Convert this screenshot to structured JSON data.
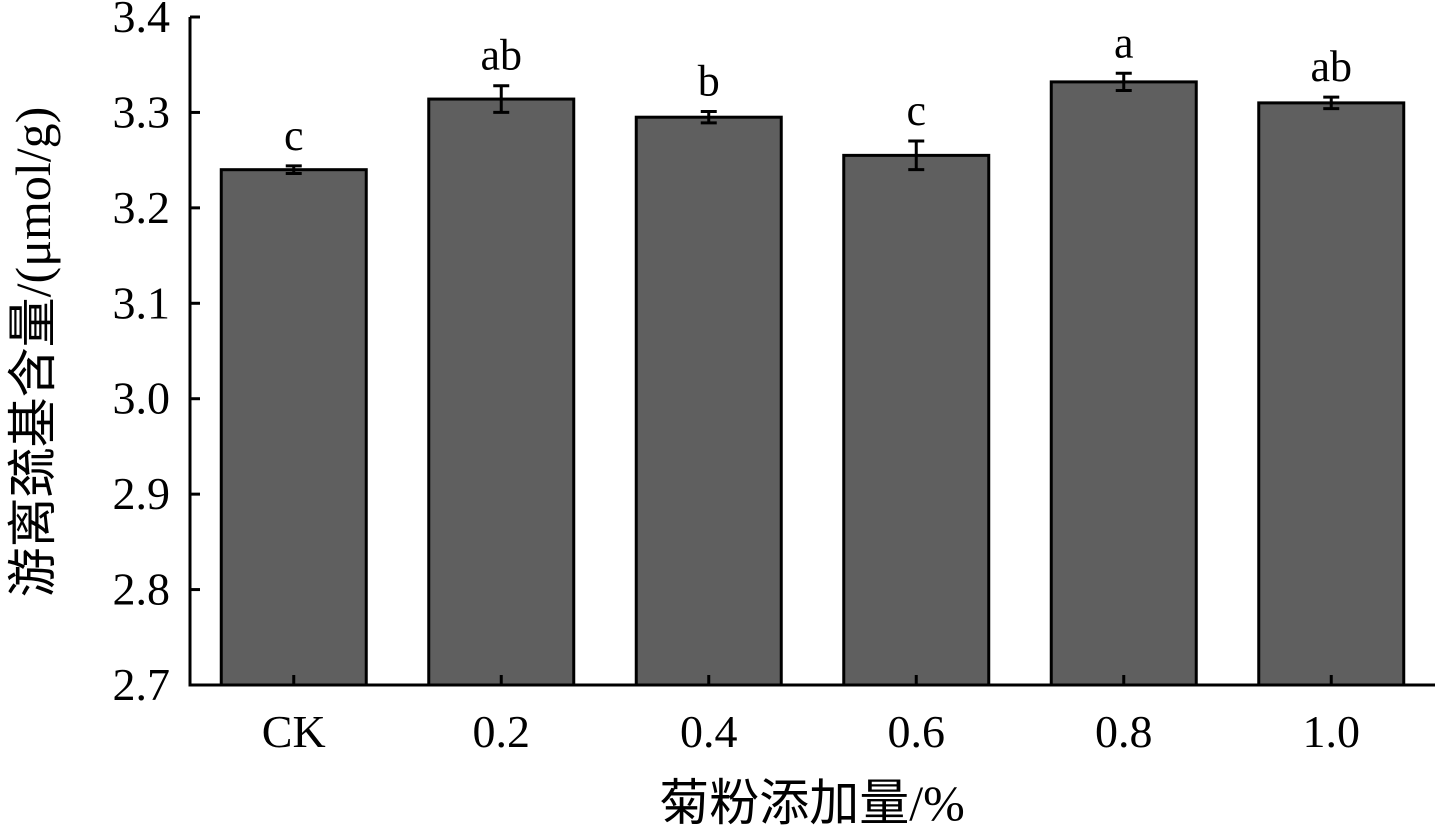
{
  "chart_data": {
    "type": "bar",
    "title": "",
    "xlabel": "菊粉添加量/%",
    "ylabel": "游离巯基含量/(μmol/g)",
    "categories": [
      "CK",
      "0.2",
      "0.4",
      "0.6",
      "0.8",
      "1.0"
    ],
    "values": [
      3.24,
      3.314,
      3.295,
      3.255,
      3.332,
      3.31
    ],
    "errors": [
      0.004,
      0.014,
      0.006,
      0.015,
      0.009,
      0.006
    ],
    "significance_labels": [
      "c",
      "ab",
      "b",
      "c",
      "a",
      "ab"
    ],
    "ylim": [
      2.7,
      3.4
    ],
    "yticks": [
      "2.7",
      "2.8",
      "2.9",
      "3.0",
      "3.1",
      "3.2",
      "3.3",
      "3.4"
    ],
    "grid": false,
    "legend": "none",
    "bar_color": "#5f5f5f",
    "edge_color": "#000000"
  }
}
